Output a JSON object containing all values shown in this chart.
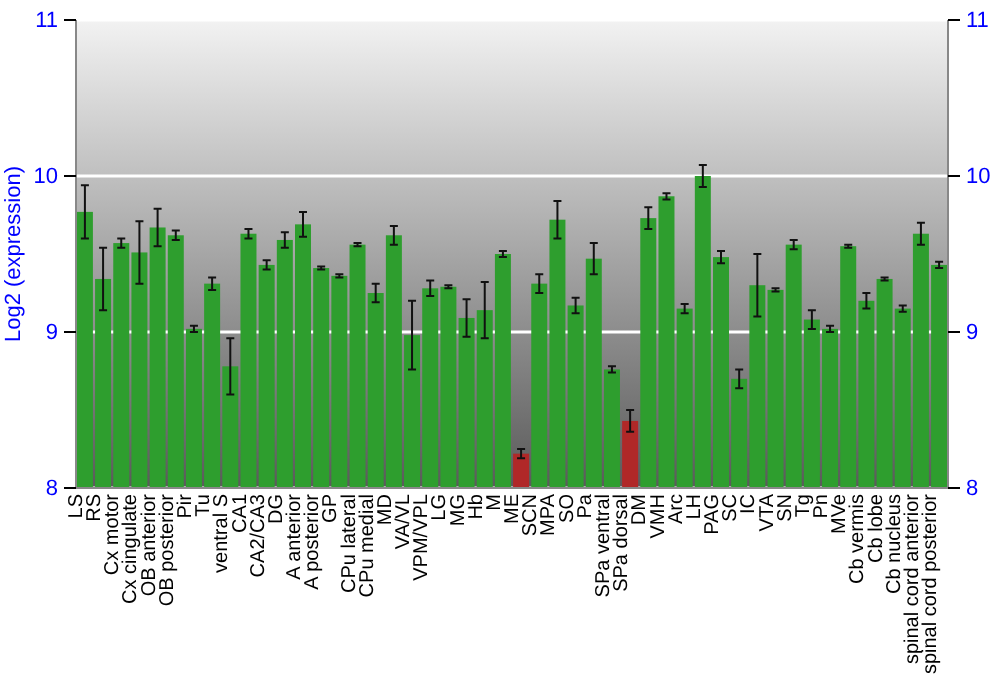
{
  "chart_data": {
    "type": "bar",
    "ylabel": "Log2 (expression)",
    "categories": [
      "LS",
      "RS",
      "Cx motor",
      "Cx cingulate",
      "OB anterior",
      "OB posterior",
      "Pir",
      "Tu",
      "ventral S",
      "CA1",
      "CA2/CA3",
      "DG",
      "A anterior",
      "A posterior",
      "GP",
      "CPu lateral",
      "CPu medial",
      "MD",
      "VA/VL",
      "VPM/VPL",
      "LG",
      "MG",
      "Hb",
      "M",
      "ME",
      "SCN",
      "MPA",
      "SO",
      "Pa",
      "SPa ventral",
      "SPa dorsal",
      "DM",
      "VMH",
      "Arc",
      "LH",
      "PAG",
      "SC",
      "IC",
      "VTA",
      "SN",
      "Tg",
      "Pn",
      "MVe",
      "Cb vermis",
      "Cb lobe",
      "Cb nucleus",
      "spinal cord anterior",
      "spinal cord posterior"
    ],
    "values": [
      9.77,
      9.34,
      9.57,
      9.51,
      9.67,
      9.62,
      9.02,
      9.31,
      8.78,
      9.63,
      9.43,
      9.59,
      9.69,
      9.41,
      9.36,
      9.56,
      9.25,
      9.62,
      8.98,
      9.28,
      9.29,
      9.09,
      9.14,
      9.5,
      8.22,
      9.31,
      9.72,
      9.17,
      9.47,
      8.76,
      8.43,
      9.73,
      9.87,
      9.15,
      10.0,
      9.48,
      8.7,
      9.3,
      9.27,
      9.56,
      9.08,
      9.02,
      9.55,
      9.2,
      9.34,
      9.15,
      9.63,
      9.43
    ],
    "errors": [
      0.17,
      0.2,
      0.03,
      0.2,
      0.12,
      0.03,
      0.02,
      0.04,
      0.18,
      0.03,
      0.03,
      0.05,
      0.08,
      0.01,
      0.01,
      0.01,
      0.06,
      0.06,
      0.22,
      0.05,
      0.01,
      0.12,
      0.18,
      0.02,
      0.03,
      0.06,
      0.12,
      0.05,
      0.1,
      0.02,
      0.07,
      0.07,
      0.02,
      0.03,
      0.07,
      0.04,
      0.06,
      0.2,
      0.01,
      0.03,
      0.06,
      0.02,
      0.01,
      0.05,
      0.01,
      0.02,
      0.07,
      0.02
    ],
    "colors": [
      "#2e9e2e",
      "#2e9e2e",
      "#2e9e2e",
      "#2e9e2e",
      "#2e9e2e",
      "#2e9e2e",
      "#2e9e2e",
      "#2e9e2e",
      "#2e9e2e",
      "#2e9e2e",
      "#2e9e2e",
      "#2e9e2e",
      "#2e9e2e",
      "#2e9e2e",
      "#2e9e2e",
      "#2e9e2e",
      "#2e9e2e",
      "#2e9e2e",
      "#2e9e2e",
      "#2e9e2e",
      "#2e9e2e",
      "#2e9e2e",
      "#2e9e2e",
      "#2e9e2e",
      "#b02828",
      "#2e9e2e",
      "#2e9e2e",
      "#2e9e2e",
      "#2e9e2e",
      "#2e9e2e",
      "#b02828",
      "#2e9e2e",
      "#2e9e2e",
      "#2e9e2e",
      "#2e9e2e",
      "#2e9e2e",
      "#2e9e2e",
      "#2e9e2e",
      "#2e9e2e",
      "#2e9e2e",
      "#2e9e2e",
      "#2e9e2e",
      "#2e9e2e",
      "#2e9e2e",
      "#2e9e2e",
      "#2e9e2e",
      "#2e9e2e",
      "#2e9e2e"
    ],
    "ylim": [
      8,
      11
    ],
    "yticks": [
      8,
      9,
      10,
      11
    ],
    "y2lim": [
      8,
      11
    ],
    "y2ticks": [
      8,
      9,
      10,
      11
    ],
    "grid": "y"
  }
}
